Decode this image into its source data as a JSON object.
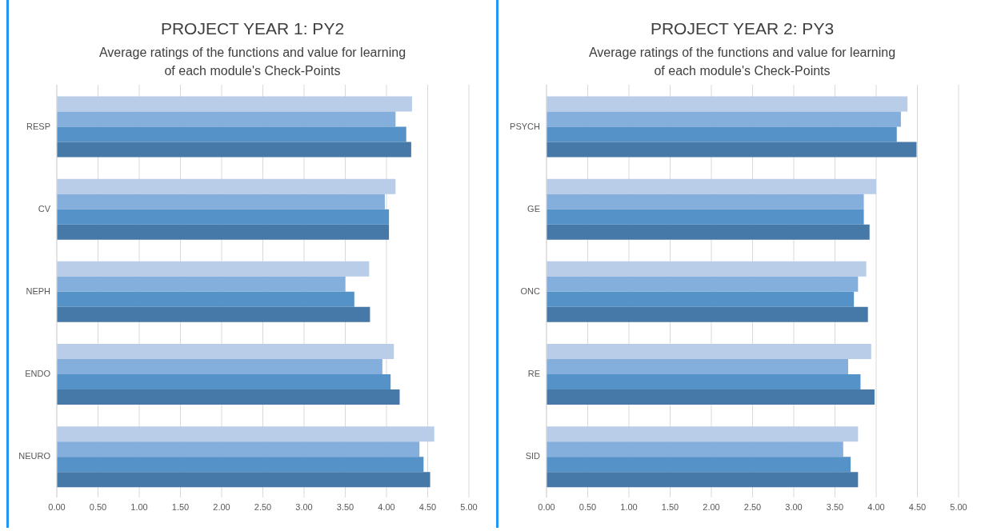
{
  "chart_data": [
    {
      "type": "bar",
      "orientation": "horizontal",
      "title": "PROJECT YEAR 1: PY2",
      "subtitle": "Average ratings of the functions and value for learning of each module's Check-Points",
      "categories": [
        "RESP",
        "CV",
        "NEPH",
        "ENDO",
        "NEURO"
      ],
      "series": [
        {
          "color": "#b9cde8",
          "values": [
            4.31,
            4.11,
            3.79,
            4.09,
            4.58
          ]
        },
        {
          "color": "#84afdc",
          "values": [
            4.11,
            3.98,
            3.5,
            3.95,
            4.4
          ]
        },
        {
          "color": "#5592c8",
          "values": [
            4.24,
            4.03,
            3.61,
            4.05,
            4.45
          ]
        },
        {
          "color": "#4679a8",
          "values": [
            4.3,
            4.03,
            3.8,
            4.16,
            4.53
          ]
        }
      ],
      "xlim": [
        0,
        5
      ],
      "xticks": [
        {
          "value": 0,
          "label": "0.00"
        },
        {
          "value": 0.5,
          "label": "0.50"
        },
        {
          "value": 1,
          "label": "1.00"
        },
        {
          "value": 1.5,
          "label": "1.50"
        },
        {
          "value": 2,
          "label": "2.00"
        },
        {
          "value": 2.5,
          "label": "2.50"
        },
        {
          "value": 3,
          "label": "3.00"
        },
        {
          "value": 3.5,
          "label": "3.50"
        },
        {
          "value": 4,
          "label": "4.00"
        },
        {
          "value": 4.5,
          "label": "4.50"
        },
        {
          "value": 5,
          "label": "5.00"
        }
      ],
      "grid": "x",
      "legend": false
    },
    {
      "type": "bar",
      "orientation": "horizontal",
      "title": "PROJECT YEAR 2: PY3",
      "subtitle": "Average ratings of the functions and value for learning of each module's Check-Points",
      "categories": [
        "PSYCH",
        "GE",
        "ONC",
        "RE",
        "SID"
      ],
      "series": [
        {
          "color": "#b9cde8",
          "values": [
            4.38,
            4.0,
            3.88,
            3.94,
            3.78
          ]
        },
        {
          "color": "#84afdc",
          "values": [
            4.3,
            3.85,
            3.78,
            3.66,
            3.6
          ]
        },
        {
          "color": "#5592c8",
          "values": [
            4.25,
            3.85,
            3.73,
            3.81,
            3.69
          ]
        },
        {
          "color": "#4679a8",
          "values": [
            4.49,
            3.92,
            3.9,
            3.98,
            3.78
          ]
        }
      ],
      "xlim": [
        0,
        5
      ],
      "xticks": [
        {
          "value": 0,
          "label": "0.00"
        },
        {
          "value": 0.5,
          "label": "0.50"
        },
        {
          "value": 1,
          "label": "1.00"
        },
        {
          "value": 1.5,
          "label": "1.50"
        },
        {
          "value": 2,
          "label": "2.00"
        },
        {
          "value": 2.5,
          "label": "2.50"
        },
        {
          "value": 3,
          "label": "3.00"
        },
        {
          "value": 3.5,
          "label": "3.50"
        },
        {
          "value": 4,
          "label": "4.00"
        },
        {
          "value": 4.5,
          "label": "4.50"
        },
        {
          "value": 5,
          "label": "5.00"
        }
      ],
      "grid": "x",
      "legend": false
    }
  ]
}
